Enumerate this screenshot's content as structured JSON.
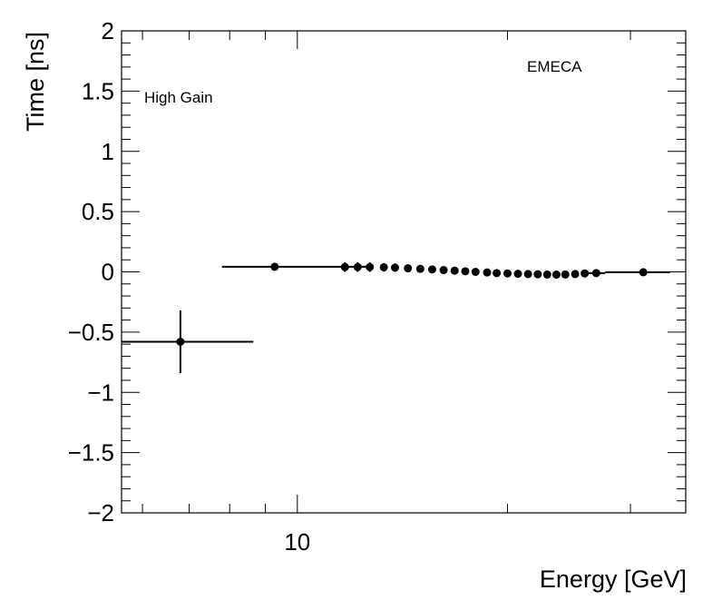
{
  "chart_data": {
    "type": "scatter",
    "xlabel": "Energy [GeV]",
    "ylabel": "Time [ns]",
    "xscale": "log",
    "xlim": [
      5.6,
      36
    ],
    "ylim": [
      -2,
      2
    ],
    "x_ticks": [
      {
        "value": 10,
        "label": "10"
      }
    ],
    "y_ticks": [
      {
        "value": 2,
        "label": "2"
      },
      {
        "value": 1.5,
        "label": "1.5"
      },
      {
        "value": 1,
        "label": "1"
      },
      {
        "value": 0.5,
        "label": "0.5"
      },
      {
        "value": 0,
        "label": "0"
      },
      {
        "value": -0.5,
        "label": "−0.5"
      },
      {
        "value": -1,
        "label": "−1"
      },
      {
        "value": -1.5,
        "label": "−1.5"
      },
      {
        "value": -2,
        "label": "−2"
      }
    ],
    "grid": false,
    "annotations": {
      "left": "High Gain",
      "right": "EMECA"
    },
    "series": [
      {
        "points": [
          {
            "x": 6.8,
            "y": -0.58,
            "xmin": 5.6,
            "xmax": 8.65,
            "yerr": 0.26
          },
          {
            "x": 9.28,
            "y": 0.042,
            "xmin": 7.8,
            "xmax": 12.7,
            "yerr": 0.02
          },
          {
            "x": 11.7,
            "y": 0.04,
            "xmin": 11.6,
            "xmax": 11.8,
            "yerr": 0.04
          },
          {
            "x": 12.2,
            "y": 0.04,
            "xmin": 12.1,
            "xmax": 12.3,
            "yerr": 0.04
          },
          {
            "x": 12.7,
            "y": 0.04,
            "xmin": 12.6,
            "xmax": 12.8,
            "yerr": 0.04
          },
          {
            "x": 13.3,
            "y": 0.038,
            "xmin": 13.2,
            "xmax": 13.4,
            "yerr": 0.035
          },
          {
            "x": 13.8,
            "y": 0.035,
            "xmin": 13.7,
            "xmax": 13.9,
            "yerr": 0.035
          },
          {
            "x": 14.4,
            "y": 0.03,
            "xmin": 14.3,
            "xmax": 14.5,
            "yerr": 0.03
          },
          {
            "x": 15.0,
            "y": 0.025,
            "xmin": 14.9,
            "xmax": 15.1,
            "yerr": 0.03
          },
          {
            "x": 15.6,
            "y": 0.02,
            "xmin": 15.5,
            "xmax": 15.7,
            "yerr": 0.025
          },
          {
            "x": 16.2,
            "y": 0.015,
            "xmin": 16.1,
            "xmax": 16.3,
            "yerr": 0.02
          },
          {
            "x": 16.8,
            "y": 0.01,
            "xmin": 16.7,
            "xmax": 16.9,
            "yerr": 0.02
          },
          {
            "x": 17.4,
            "y": 0.005,
            "xmin": 17.3,
            "xmax": 17.5,
            "yerr": 0.02
          },
          {
            "x": 18.0,
            "y": 0.0,
            "xmin": 17.9,
            "xmax": 18.1,
            "yerr": 0.02
          },
          {
            "x": 18.7,
            "y": -0.005,
            "xmin": 18.6,
            "xmax": 18.8,
            "yerr": 0.02
          },
          {
            "x": 19.3,
            "y": -0.01,
            "xmin": 19.2,
            "xmax": 19.4,
            "yerr": 0.02
          },
          {
            "x": 20.0,
            "y": -0.013,
            "xmin": 19.9,
            "xmax": 20.1,
            "yerr": 0.02
          },
          {
            "x": 20.7,
            "y": -0.016,
            "xmin": 20.6,
            "xmax": 20.8,
            "yerr": 0.02
          },
          {
            "x": 21.4,
            "y": -0.018,
            "xmin": 21.3,
            "xmax": 21.5,
            "yerr": 0.02
          },
          {
            "x": 22.1,
            "y": -0.02,
            "xmin": 22.0,
            "xmax": 22.2,
            "yerr": 0.02
          },
          {
            "x": 22.8,
            "y": -0.022,
            "xmin": 22.7,
            "xmax": 22.9,
            "yerr": 0.02
          },
          {
            "x": 23.5,
            "y": -0.023,
            "xmin": 23.4,
            "xmax": 23.6,
            "yerr": 0.02
          },
          {
            "x": 24.2,
            "y": -0.022,
            "xmin": 24.1,
            "xmax": 24.3,
            "yerr": 0.02
          },
          {
            "x": 25.0,
            "y": -0.018,
            "xmin": 24.9,
            "xmax": 25.1,
            "yerr": 0.02
          },
          {
            "x": 25.8,
            "y": -0.013,
            "xmin": 25.7,
            "xmax": 25.9,
            "yerr": 0.02
          },
          {
            "x": 26.8,
            "y": -0.01,
            "xmin": 26.0,
            "xmax": 27.6,
            "yerr": 0.02
          },
          {
            "x": 31.3,
            "y": -0.003,
            "xmin": 27.6,
            "xmax": 34.2,
            "yerr": 0.02
          }
        ]
      }
    ]
  }
}
